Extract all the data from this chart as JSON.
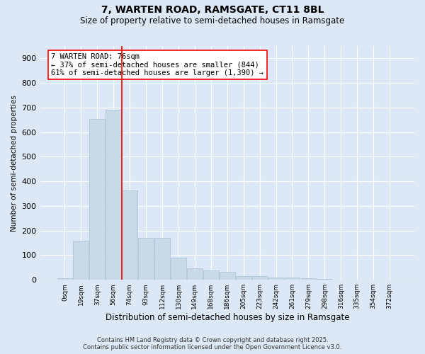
{
  "title1": "7, WARTEN ROAD, RAMSGATE, CT11 8BL",
  "title2": "Size of property relative to semi-detached houses in Ramsgate",
  "xlabel": "Distribution of semi-detached houses by size in Ramsgate",
  "ylabel": "Number of semi-detached properties",
  "bar_labels": [
    "0sqm",
    "19sqm",
    "37sqm",
    "56sqm",
    "74sqm",
    "93sqm",
    "112sqm",
    "130sqm",
    "149sqm",
    "168sqm",
    "186sqm",
    "205sqm",
    "223sqm",
    "242sqm",
    "261sqm",
    "279sqm",
    "298sqm",
    "316sqm",
    "335sqm",
    "354sqm",
    "372sqm"
  ],
  "bar_values": [
    7,
    158,
    655,
    690,
    362,
    170,
    170,
    90,
    47,
    37,
    32,
    16,
    14,
    10,
    10,
    5,
    4,
    2,
    0,
    0,
    0
  ],
  "bar_color": "#c9d9e8",
  "bar_edgecolor": "#a8c0d4",
  "property_line_x": 3.5,
  "annotation_title": "7 WARTEN ROAD: 76sqm",
  "annotation_line1": "← 37% of semi-detached houses are smaller (844)",
  "annotation_line2": "61% of semi-detached houses are larger (1,390) →",
  "ylim": [
    0,
    950
  ],
  "yticks": [
    0,
    100,
    200,
    300,
    400,
    500,
    600,
    700,
    800,
    900
  ],
  "footer1": "Contains HM Land Registry data © Crown copyright and database right 2025.",
  "footer2": "Contains public sector information licensed under the Open Government Licence v3.0.",
  "bg_color": "#dce8f5",
  "plot_bg_color": "#dce8f5"
}
